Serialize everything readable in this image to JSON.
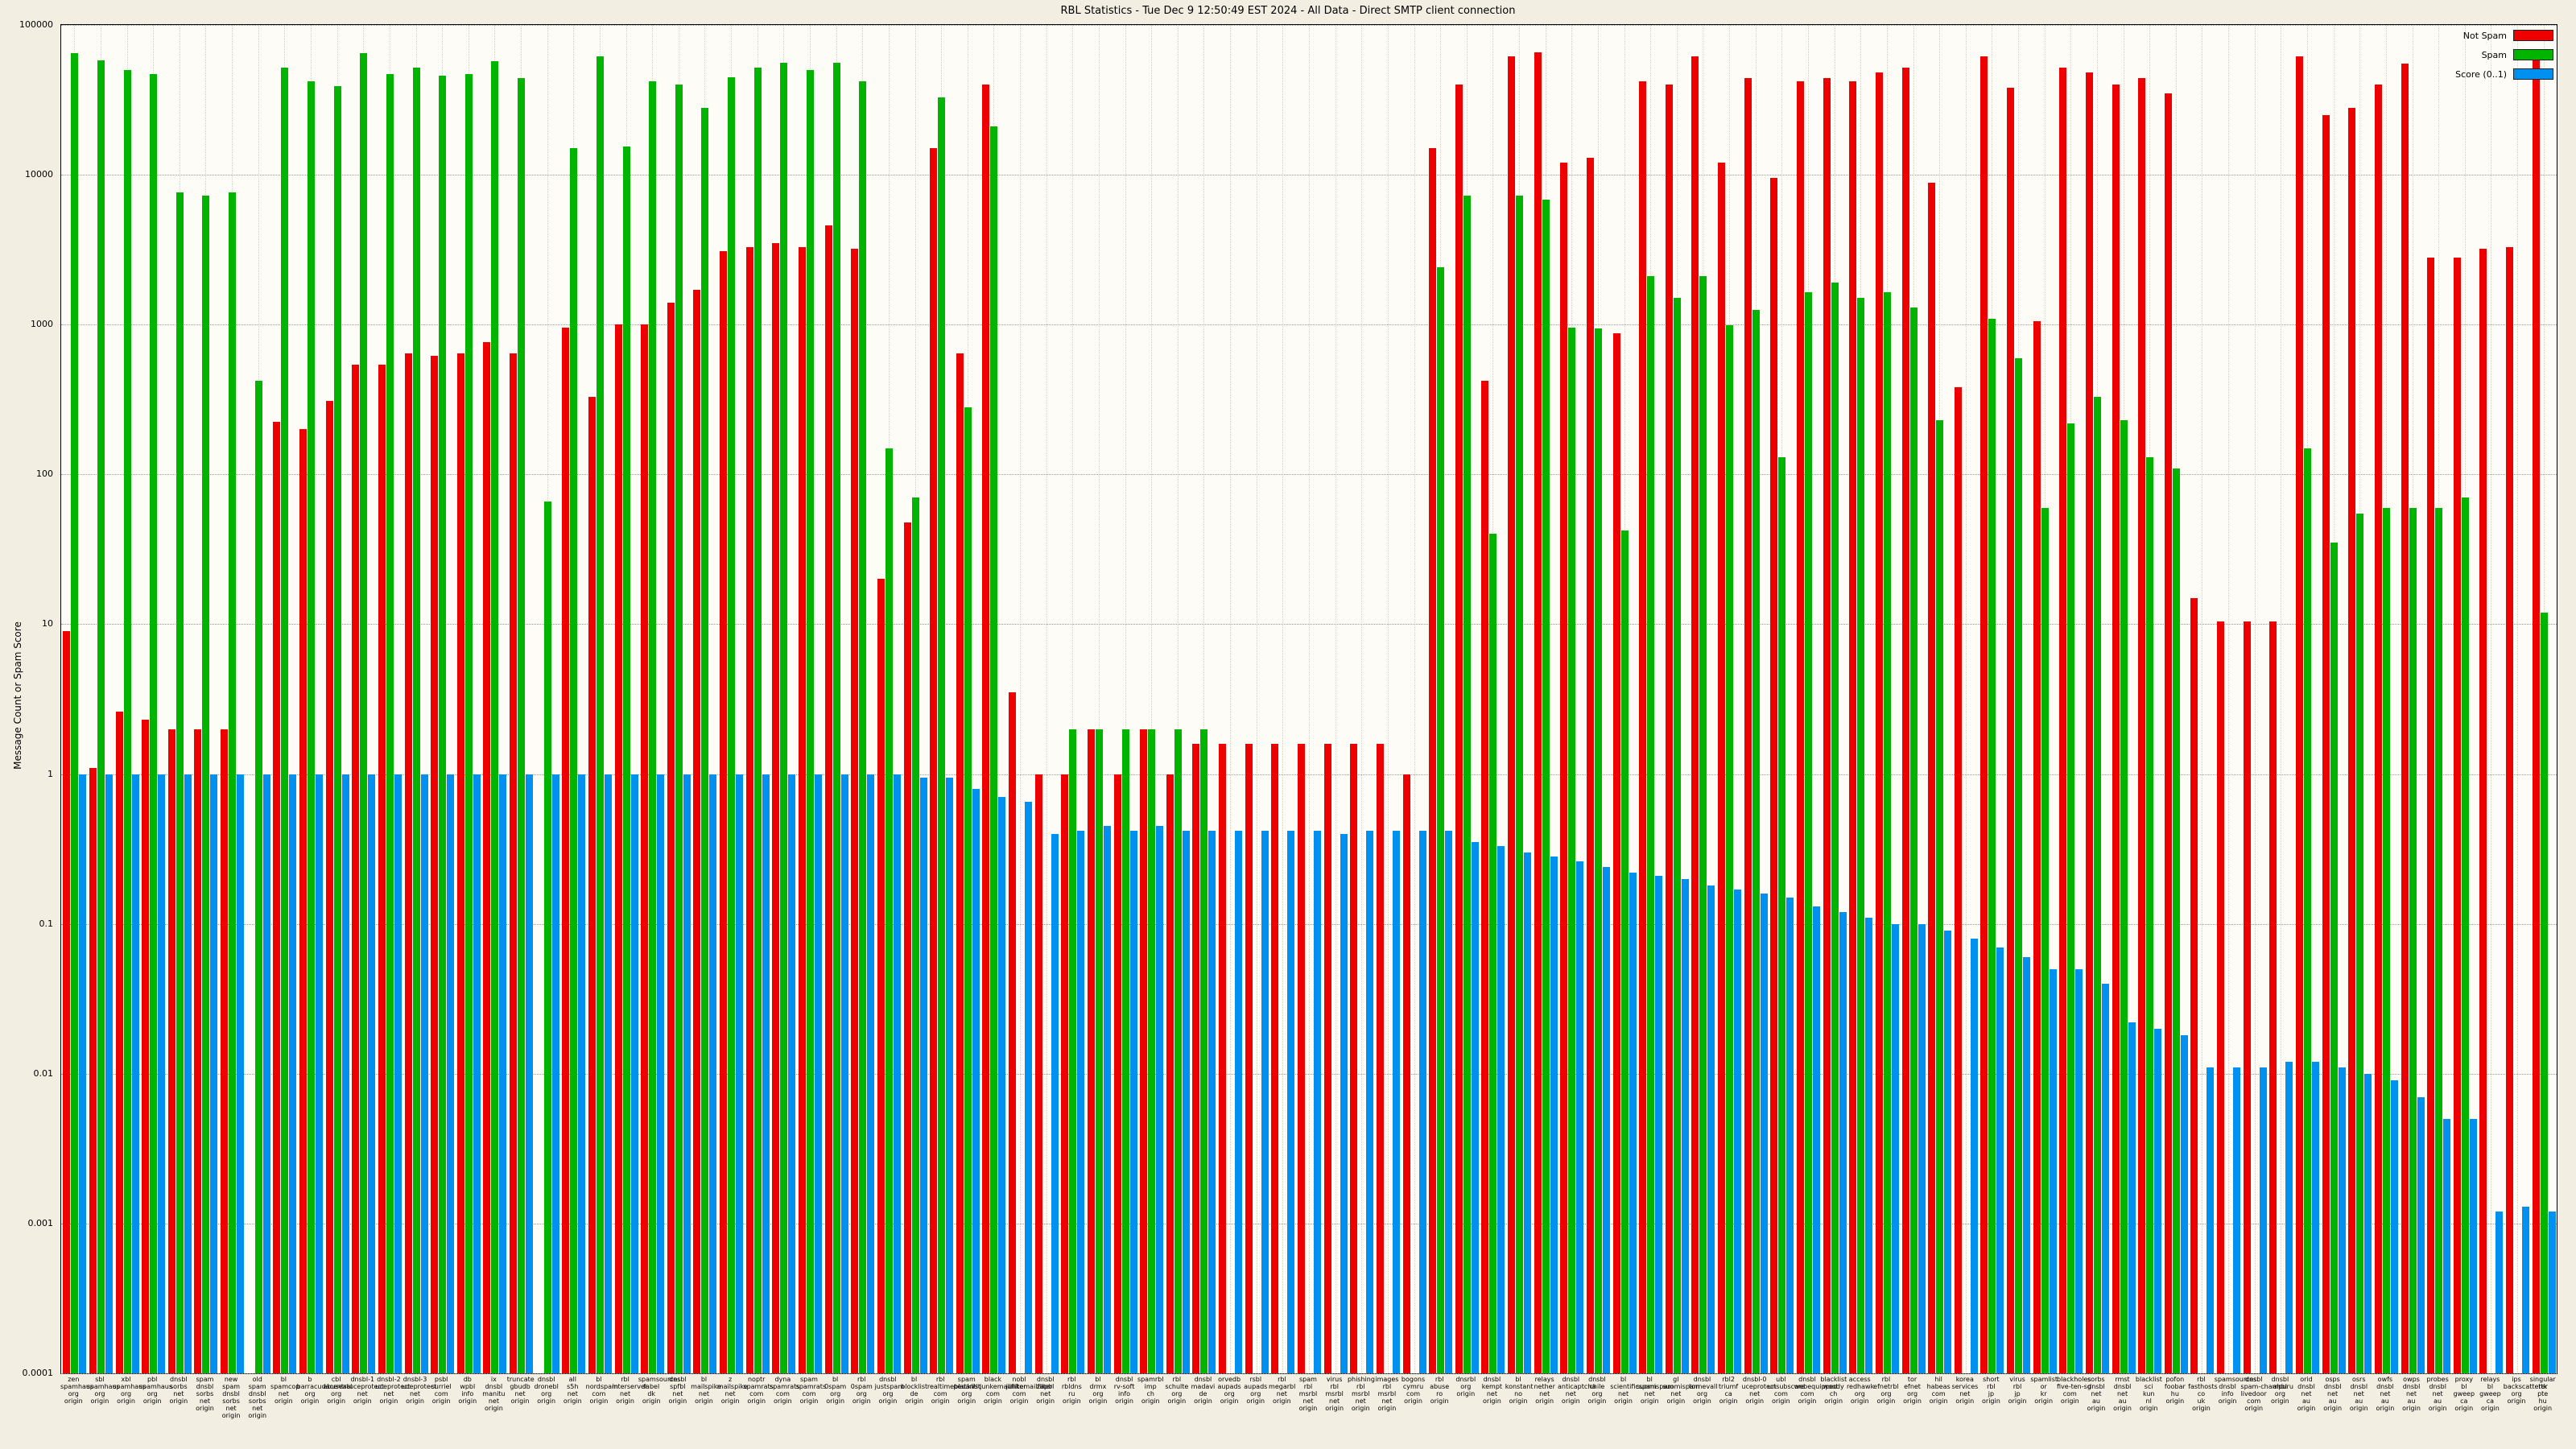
{
  "title": "RBL Statistics - Tue Dec  9 12:50:49 EST 2024 - All Data - Direct SMTP client connection",
  "ylabel": "Message Count or Spam Score",
  "colors": {
    "not_spam": "#ee0000",
    "spam": "#00b400",
    "score": "#0090f0"
  },
  "chart_data": {
    "type": "bar",
    "yscale": "log",
    "ylim": [
      0.0001,
      100000
    ],
    "yticks": [
      "100000",
      "10000",
      "1000",
      "100",
      "10",
      "1",
      "0.1",
      "0.01",
      "0.001",
      "0.0001"
    ],
    "grid": true,
    "legend_position": "top-right",
    "categories": [
      "zen.spamhaus.org",
      "sbl.spamhaus.org",
      "xbl.spamhaus.org",
      "pbl.spamhaus.org",
      "dnsbl.sorbs.net",
      "spam.dnsbl.sorbs.net",
      "new.spam.dnsbl.sorbs.net",
      "old.spam.dnsbl.sorbs.net",
      "bl.spamcop.net",
      "b.barracudacentral.org",
      "cbl.abuseat.org",
      "dnsbl-1.uceprotect.net",
      "dnsbl-2.uceprotect.net",
      "dnsbl-3.uceprotect.net",
      "psbl.surriel.com",
      "db.wpbl.info",
      "ix.dnsbl.manitu.net",
      "truncate.gbudb.net",
      "dnsbl.dronebl.org",
      "all.s5h.net",
      "bl.nordspam.com",
      "rbl.interserver.net",
      "spamsources.fabel.dk",
      "dnsbl.spfbl.net",
      "bl.mailspike.net",
      "z.mailspike.net",
      "noptr.spamrats.com",
      "dyna.spamrats.com",
      "spam.spamrats.com",
      "bl.0spam.org",
      "rbl.0spam.org",
      "dnsbl.justspam.org",
      "bl.blocklist.de",
      "rbl.realtimeblacklist.com",
      "spam.pedantic.org",
      "black.junkemailfilter.com",
      "nobl.junkemailfilter.com",
      "dnsbl.zapbl.net",
      "rbl.rbldns.ru",
      "bl.drmx.org",
      "dnsbl.rv-soft.info",
      "spamrbl.imp.ch",
      "rbl.schulte.org",
      "dnsbl.madavi.de",
      "orvedb.aupads.org",
      "rsbl.aupads.org",
      "rbl.megarbl.net",
      "spam.rbl.msrbl.net",
      "virus.rbl.msrbl.net",
      "phishing.rbl.msrbl.net",
      "images.rbl.msrbl.net",
      "bogons.cymru.com",
      "rbl.abuse.ro",
      "dnsrbl.org",
      "dnsbl.kempt.net",
      "bl.konstant.no",
      "relays.nether.net",
      "dnsbl.anticaptcha.net",
      "dnsbl.chile.org",
      "bl.scientificspam.net",
      "bl.suomispam.net",
      "gl.suomispam.net",
      "dnsbl.tornevall.org",
      "rbl2.triumf.ca",
      "dnsbl-0.uceprotect.net",
      "ubl.unsubscore.com",
      "dnsbl.webequipped.com",
      "blacklist.woody.ch",
      "access.redhawk.org",
      "rbl.efnetrbl.org",
      "tor.efnet.org",
      "hil.habeas.com",
      "korea.services.net",
      "short.rbl.jp",
      "virus.rbl.jp",
      "spamlist.or.kr",
      "blackholes.five-ten-sg.com",
      "sorbs.dnsbl.net.au",
      "rmst.dnsbl.net.au",
      "blacklist.sci.kun.nl",
      "pofon.foobar.hu",
      "rbl.fasthosts.co.uk",
      "spamsources.dnsbl.info",
      "dnsbl.spam-champuru.livedoor.com",
      "dnsbl.ahbl.org",
      "orid.dnsbl.net.au",
      "osps.dnsbl.net.au",
      "osrs.dnsbl.net.au",
      "owfs.dnsbl.net.au",
      "owps.dnsbl.net.au",
      "probes.dnsbl.net.au",
      "proxy.bl.gweep.ca",
      "relays.bl.gweep.ca",
      "ips.backscatterer.org",
      "singular.ttk.pte.hu"
    ],
    "series": [
      {
        "name": "Not Spam",
        "color": "#ee0000",
        "values": [
          9,
          1.1,
          2.6,
          2.3,
          2,
          2,
          2,
          0,
          225,
          200,
          310,
          540,
          540,
          640,
          620,
          640,
          760,
          640,
          0,
          950,
          330,
          1000,
          1000,
          1400,
          1700,
          3100,
          3300,
          3500,
          3300,
          4600,
          3200,
          20,
          48,
          15000,
          640,
          40000,
          3.5,
          1,
          1,
          2,
          1,
          2,
          1,
          1.6,
          1.6,
          1.6,
          1.6,
          1.6,
          1.6,
          1.6,
          1.6,
          1,
          15000,
          40000,
          420,
          62000,
          66000,
          12000,
          13000,
          880,
          42000,
          40000,
          62000,
          12000,
          44000,
          9500,
          42000,
          44000,
          42000,
          48000,
          52000,
          8800,
          380,
          62000,
          38000,
          1050,
          52000,
          48000,
          40000,
          44000,
          35000,
          15,
          10.5,
          10.5,
          10.5,
          62000,
          25000,
          28000,
          40000,
          55000,
          2800,
          2800,
          3200,
          3300,
          65000
        ]
      },
      {
        "name": "Spam",
        "color": "#00b400",
        "values": [
          65000,
          58000,
          50000,
          47000,
          7600,
          7300,
          7600,
          420,
          52000,
          42000,
          39000,
          65000,
          47000,
          52000,
          46000,
          47000,
          57000,
          44000,
          66,
          15000,
          62000,
          15500,
          42000,
          40000,
          28000,
          45000,
          52000,
          56000,
          50000,
          56000,
          42000,
          150,
          70,
          33000,
          280,
          21000,
          0,
          0,
          2,
          2,
          2,
          2,
          2,
          2,
          0,
          0,
          0,
          0,
          0,
          0,
          0,
          0,
          2400,
          7300,
          40,
          7300,
          6800,
          950,
          940,
          42,
          2100,
          1500,
          2100,
          990,
          1250,
          130,
          1650,
          1900,
          1500,
          1650,
          1300,
          230,
          0,
          1100,
          600,
          60,
          220,
          330,
          230,
          130,
          110,
          0,
          0,
          0,
          0,
          150,
          35,
          55,
          60,
          60,
          60,
          70,
          0,
          0,
          12
        ]
      },
      {
        "name": "Score (0..1)",
        "color": "#0090f0",
        "values": [
          1,
          1,
          1,
          1,
          1,
          1,
          1,
          1,
          1,
          1,
          1,
          1,
          1,
          1,
          1,
          1,
          1,
          1,
          1,
          1,
          1,
          1,
          1,
          1,
          1,
          1,
          1,
          1,
          1,
          1,
          1,
          1,
          0.95,
          0.95,
          0.8,
          0.7,
          0.65,
          0.4,
          0.42,
          0.45,
          0.42,
          0.45,
          0.42,
          0.42,
          0.42,
          0.42,
          0.42,
          0.42,
          0.4,
          0.42,
          0.42,
          0.42,
          0.42,
          0.35,
          0.33,
          0.3,
          0.28,
          0.26,
          0.24,
          0.22,
          0.21,
          0.2,
          0.18,
          0.17,
          0.16,
          0.15,
          0.13,
          0.12,
          0.11,
          0.1,
          0.1,
          0.09,
          0.08,
          0.07,
          0.06,
          0.05,
          0.05,
          0.04,
          0.022,
          0.02,
          0.018,
          0.011,
          0.011,
          0.011,
          0.012,
          0.012,
          0.011,
          0.01,
          0.009,
          0.007,
          0.005,
          0.005,
          0.0012,
          0.0013,
          0.0012
        ]
      }
    ]
  }
}
